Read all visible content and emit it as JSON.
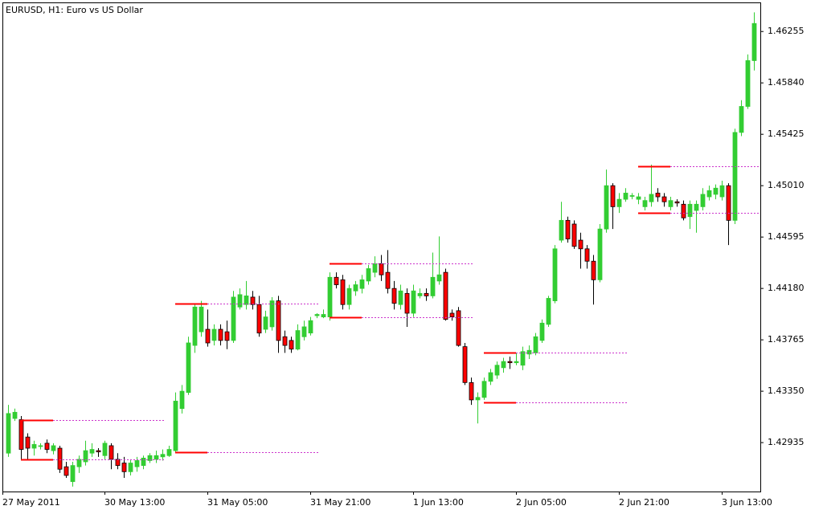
{
  "chart_data": {
    "type": "candlestick",
    "title": "EURUSD, H1:  Euro vs US Dollar",
    "categories": [
      "27 May 2011",
      null,
      null,
      null,
      null,
      null,
      null,
      null,
      null,
      null,
      null,
      null,
      null,
      null,
      null,
      "30 May 13:00",
      null,
      null,
      null,
      null,
      null,
      null,
      null,
      null,
      null,
      null,
      null,
      null,
      null,
      null,
      null,
      "31 May 05:00",
      null,
      null,
      null,
      null,
      null,
      null,
      null,
      null,
      null,
      null,
      null,
      null,
      null,
      null,
      null,
      "31 May 21:00",
      null,
      null,
      null,
      null,
      null,
      null,
      null,
      null,
      null,
      null,
      null,
      null,
      null,
      null,
      null,
      "1 Jun 13:00",
      null,
      null,
      null,
      null,
      null,
      null,
      null,
      null,
      null,
      null,
      null,
      null,
      null,
      null,
      null,
      "2 Jun 05:00",
      null,
      null,
      null,
      null,
      null,
      null,
      null,
      null,
      null,
      null,
      null,
      null,
      null,
      null,
      null,
      "2 Jun 21:00",
      null,
      null,
      null,
      null,
      null,
      null,
      null,
      null,
      null,
      null,
      null,
      null,
      null,
      null,
      null,
      "3 Jun 13:00",
      null,
      null,
      null,
      null,
      null
    ],
    "open": [
      1.4285,
      1.4313,
      1.4312,
      1.4298,
      1.4289,
      1.4291,
      1.4293,
      1.4287,
      1.4289,
      1.4274,
      1.4262,
      1.4274,
      1.4278,
      1.4285,
      1.4287,
      1.4283,
      1.4291,
      1.428,
      1.4277,
      1.427,
      1.4274,
      1.4275,
      1.4279,
      1.428,
      1.4282,
      1.4283,
      1.4287,
      1.4321,
      1.4334,
      1.4372,
      1.4383,
      1.4385,
      1.4376,
      1.4385,
      1.4383,
      1.4376,
      1.4403,
      1.4405,
      1.4411,
      1.4405,
      1.4385,
      1.4387,
      1.4408,
      1.4379,
      1.4376,
      1.4369,
      1.4379,
      1.4382,
      1.4396,
      1.4395,
      1.4395,
      1.4427,
      1.4425,
      1.4405,
      1.4416,
      1.4418,
      1.4424,
      1.4431,
      1.4438,
      1.4431,
      1.4418,
      1.4405,
      1.4414,
      1.4398,
      1.4412,
      1.4414,
      1.4412,
      1.4424,
      1.4431,
      1.4398,
      1.44,
      1.4371,
      1.4342,
      1.4328,
      1.433,
      1.4343,
      1.4348,
      1.4354,
      1.4359,
      1.4358,
      1.4356,
      1.4365,
      1.4366,
      1.4376,
      1.4389,
      1.4408,
      1.4457,
      1.4473,
      1.447,
      1.4457,
      1.445,
      1.444,
      1.4425,
      1.4466,
      1.4501,
      1.4484,
      1.449,
      1.4493,
      1.449,
      1.4484,
      1.4488,
      1.4495,
      1.4492,
      1.4484,
      1.4488,
      1.4486,
      1.4476,
      1.4481,
      1.4484,
      1.4492,
      1.4494,
      1.4492,
      1.4501,
      1.4473,
      1.4544,
      1.4565,
      1.4602
    ],
    "high": [
      1.4324,
      1.4321,
      1.4315,
      1.4301,
      1.4295,
      1.4293,
      1.4296,
      1.4293,
      1.4291,
      1.4278,
      1.4278,
      1.4283,
      1.4295,
      1.4293,
      1.4289,
      1.4295,
      1.4293,
      1.4285,
      1.4282,
      1.428,
      1.4282,
      1.4283,
      1.4285,
      1.4287,
      1.4288,
      1.4291,
      1.4334,
      1.434,
      1.4379,
      1.4406,
      1.4408,
      1.4401,
      1.4389,
      1.4389,
      1.4392,
      1.4416,
      1.4418,
      1.4424,
      1.4416,
      1.4412,
      1.44,
      1.4411,
      1.4412,
      1.4384,
      1.4379,
      1.4389,
      1.4392,
      1.4395,
      1.4398,
      1.4401,
      1.4431,
      1.4431,
      1.4429,
      1.4421,
      1.4424,
      1.4429,
      1.4437,
      1.4444,
      1.4445,
      1.4449,
      1.4424,
      1.4421,
      1.4418,
      1.4421,
      1.4418,
      1.4418,
      1.4447,
      1.446,
      1.4434,
      1.4401,
      1.4403,
      1.4374,
      1.4346,
      1.4334,
      1.4346,
      1.4353,
      1.4359,
      1.4362,
      1.4363,
      1.4366,
      1.4371,
      1.4372,
      1.4382,
      1.4393,
      1.4412,
      1.4453,
      1.4488,
      1.4476,
      1.4473,
      1.4463,
      1.4453,
      1.4445,
      1.447,
      1.4514,
      1.4503,
      1.4495,
      1.4499,
      1.4495,
      1.4495,
      1.4492,
      1.4518,
      1.4499,
      1.4495,
      1.4492,
      1.449,
      1.4489,
      1.4489,
      1.4489,
      1.4499,
      1.4501,
      1.4502,
      1.4505,
      1.4503,
      1.4547,
      1.457,
      1.4607,
      1.4641
    ],
    "low": [
      1.4282,
      1.4311,
      1.428,
      1.428,
      1.4283,
      1.4288,
      1.4285,
      1.4284,
      1.4269,
      1.4265,
      1.4258,
      1.4269,
      1.4275,
      1.4282,
      1.4282,
      1.428,
      1.4272,
      1.4272,
      1.4265,
      1.4267,
      1.427,
      1.4272,
      1.4277,
      1.4277,
      1.4279,
      1.4282,
      1.4285,
      1.4317,
      1.4332,
      1.4366,
      1.4379,
      1.4371,
      1.4372,
      1.4372,
      1.4369,
      1.4374,
      1.4401,
      1.4401,
      1.4401,
      1.4379,
      1.4382,
      1.4384,
      1.4366,
      1.4366,
      1.4366,
      1.4368,
      1.4376,
      1.438,
      1.4394,
      1.4394,
      1.4392,
      1.4418,
      1.4401,
      1.4401,
      1.4412,
      1.4414,
      1.4421,
      1.4427,
      1.4424,
      1.4414,
      1.4401,
      1.4401,
      1.4387,
      1.4395,
      1.441,
      1.4408,
      1.441,
      1.4421,
      1.4392,
      1.4392,
      1.4371,
      1.434,
      1.4324,
      1.4309,
      1.4328,
      1.434,
      1.4345,
      1.435,
      1.4353,
      1.4356,
      1.4352,
      1.4361,
      1.4364,
      1.4374,
      1.4387,
      1.4406,
      1.4455,
      1.4455,
      1.445,
      1.4434,
      1.4434,
      1.4405,
      1.4423,
      1.4463,
      1.4466,
      1.4479,
      1.4488,
      1.449,
      1.4486,
      1.4481,
      1.4484,
      1.4488,
      1.4484,
      1.4481,
      1.4484,
      1.4473,
      1.4466,
      1.4463,
      1.4481,
      1.4489,
      1.449,
      1.4489,
      1.4453,
      1.447,
      1.4541,
      1.4563,
      1.4594
    ],
    "close": [
      1.4317,
      1.4318,
      1.4288,
      1.4289,
      1.4292,
      1.4291,
      1.4288,
      1.4291,
      1.4272,
      1.4267,
      1.4275,
      1.428,
      1.4287,
      1.4288,
      1.4286,
      1.4293,
      1.428,
      1.4275,
      1.427,
      1.4277,
      1.4279,
      1.4281,
      1.4283,
      1.4283,
      1.4284,
      1.4288,
      1.4327,
      1.4335,
      1.4374,
      1.4403,
      1.4403,
      1.4374,
      1.4385,
      1.4376,
      1.4376,
      1.4411,
      1.4413,
      1.4412,
      1.4405,
      1.4382,
      1.4395,
      1.4408,
      1.4376,
      1.4372,
      1.4369,
      1.4384,
      1.4387,
      1.4392,
      1.4397,
      1.4397,
      1.4427,
      1.4421,
      1.4405,
      1.4418,
      1.4421,
      1.4425,
      1.4434,
      1.4438,
      1.4429,
      1.4418,
      1.4406,
      1.4416,
      1.4398,
      1.4416,
      1.4414,
      1.4412,
      1.4427,
      1.4429,
      1.4393,
      1.4395,
      1.4372,
      1.4342,
      1.4328,
      1.433,
      1.4343,
      1.435,
      1.4356,
      1.4359,
      1.4358,
      1.4359,
      1.4367,
      1.4368,
      1.4379,
      1.439,
      1.441,
      1.445,
      1.4473,
      1.4458,
      1.4452,
      1.445,
      1.444,
      1.4425,
      1.4466,
      1.4501,
      1.4484,
      1.449,
      1.4495,
      1.4493,
      1.4492,
      1.4489,
      1.4494,
      1.4492,
      1.4488,
      1.4489,
      1.4487,
      1.4475,
      1.4486,
      1.4486,
      1.4494,
      1.4497,
      1.4499,
      1.4501,
      1.4473,
      1.4544,
      1.4565,
      1.4602,
      1.4632
    ],
    "up_color": "#32cd32",
    "down_color": "#ff0000",
    "levels": [
      {
        "start": 2,
        "high": 1.4312,
        "low": 1.428
      },
      {
        "start": 26,
        "high": 1.4406,
        "low": 1.4286
      },
      {
        "start": 50,
        "high": 1.4438,
        "low": 1.4395
      },
      {
        "start": 74,
        "high": 1.4366,
        "low": 1.4326
      },
      {
        "start": 98,
        "high": 1.4517,
        "low": 1.4479
      }
    ],
    "level_color": "#ff0000",
    "level_extension_color": "#cc33cc",
    "ylim": [
      1.4254,
      1.4649
    ],
    "yticks": [
      1.42935,
      {
        "value": 1.4335,
        "label": "1.43350"
      },
      1.43765,
      {
        "value": 1.4418,
        "label": "1.44180"
      },
      1.44595,
      {
        "value": 1.4501,
        "label": "1.45010"
      },
      1.45425,
      {
        "value": 1.4584,
        "label": "1.45840"
      },
      1.46255
    ]
  }
}
